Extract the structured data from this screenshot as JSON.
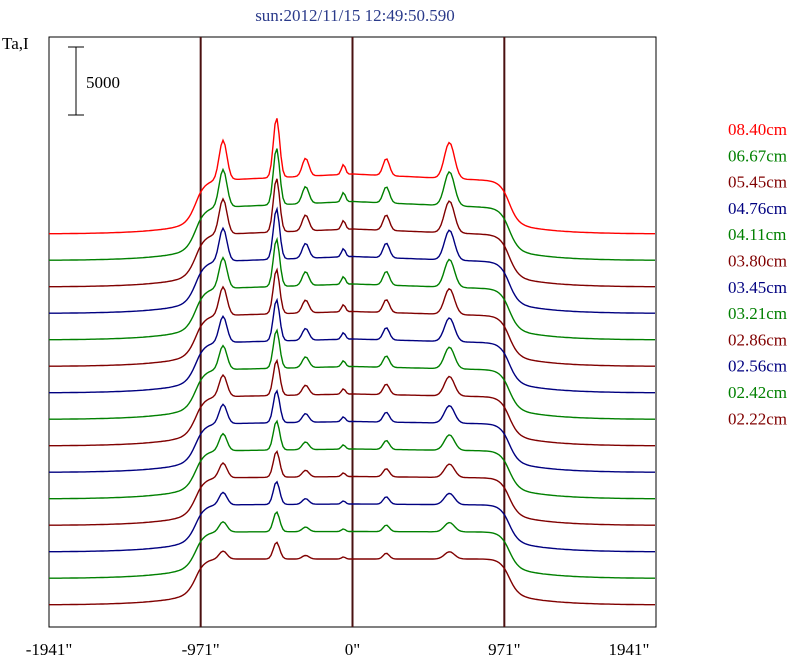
{
  "chart_data": {
    "type": "line",
    "title": "sun:2012/11/15 12:49:50.590",
    "ylabel": "Ta,I",
    "scale_bar_label": "5000",
    "scale_bar_value": 5000,
    "xlim": [
      -1941,
      1941
    ],
    "x_ticks": [
      -1941,
      -971,
      0,
      971,
      1941
    ],
    "x_tick_labels": [
      "-1941\"",
      "-971\"",
      "0\"",
      "971\"",
      "1941\""
    ],
    "vertical_lines_at": [
      -971,
      0,
      971
    ],
    "legend_position": "right",
    "series": [
      {
        "name": "08.40cm",
        "color": "#ff0000"
      },
      {
        "name": "06.67cm",
        "color": "#008000"
      },
      {
        "name": "05.45cm",
        "color": "#800000"
      },
      {
        "name": "04.76cm",
        "color": "#000080"
      },
      {
        "name": "04.11cm",
        "color": "#008000"
      },
      {
        "name": "03.80cm",
        "color": "#800000"
      },
      {
        "name": "03.45cm",
        "color": "#000080"
      },
      {
        "name": "03.21cm",
        "color": "#008000"
      },
      {
        "name": "02.86cm",
        "color": "#800000"
      },
      {
        "name": "02.56cm",
        "color": "#000080"
      },
      {
        "name": "02.42cm",
        "color": "#008000"
      },
      {
        "name": "02.22cm",
        "color": "#800000"
      },
      {
        "name": "",
        "color": "#000080"
      },
      {
        "name": "",
        "color": "#008000"
      },
      {
        "name": "",
        "color": "#800000"
      }
    ]
  }
}
